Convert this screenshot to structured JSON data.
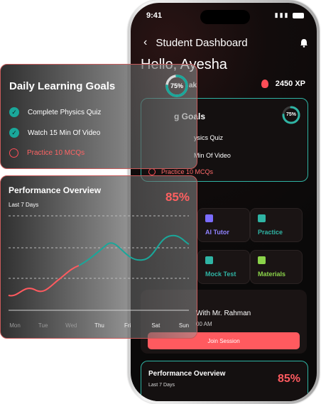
{
  "status": {
    "time": "9:41"
  },
  "header": {
    "title": "Student Dashboard"
  },
  "greeting": "Hello, Ayesha",
  "streak_fragment": "ak",
  "xp": {
    "value": "2450 XP"
  },
  "phone_goals": {
    "title_fragment": "g Goals",
    "percent": "75%",
    "item1_fragment": "ysics Quiz",
    "item2_fragment": "Min Of Video",
    "item3": "Practice 10 MCQs"
  },
  "quick_actions": [
    {
      "label": "AI Tutor",
      "color": "#7b6cff"
    },
    {
      "label": "Practice",
      "color": "#2fb4a4"
    },
    {
      "label": "Mock Test",
      "color": "#2fb4a4"
    },
    {
      "label": "Materials",
      "color": "#8bd34a"
    }
  ],
  "session": {
    "with": "With Mr. Rahman",
    "time": "00 AM",
    "join_label": "Join Session"
  },
  "phone_perf": {
    "title": "Performance Overview",
    "subtitle": "Last 7 Days",
    "percent": "85%"
  },
  "float_goals": {
    "title": "Daily Learning Goals",
    "percent": "75%",
    "progress": 0.75,
    "items": [
      {
        "label": "Complete Physics Quiz",
        "done": true
      },
      {
        "label": "Watch 15 Min Of Video",
        "done": true
      },
      {
        "label": "Practice 10 MCQs",
        "done": false
      }
    ]
  },
  "float_perf": {
    "title": "Performance Overview",
    "subtitle": "Last 7 Days",
    "percent": "85%",
    "days": [
      "Mon",
      "Tue",
      "Wed",
      "Thu",
      "Fri",
      "Sat",
      "Sun"
    ]
  },
  "colors": {
    "accent_red": "#ff5a5f",
    "accent_teal": "#2fb4a4"
  }
}
